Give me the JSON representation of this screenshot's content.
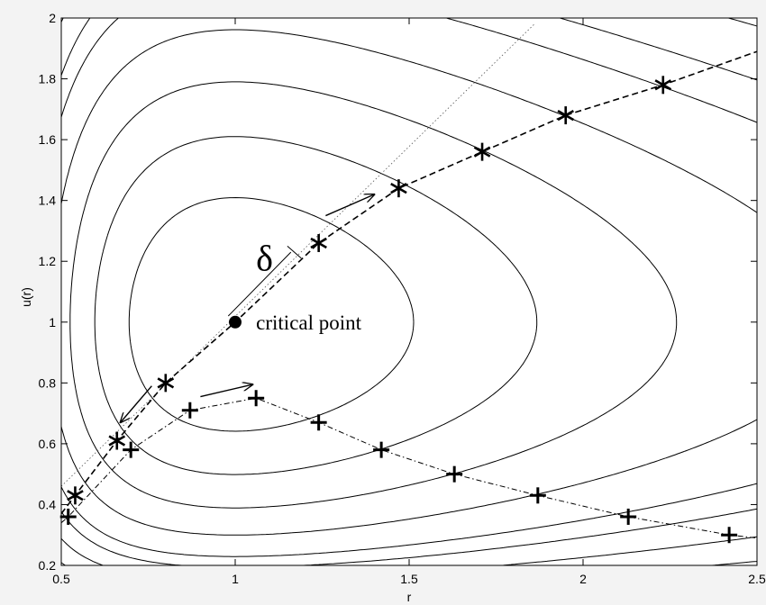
{
  "chart_data": {
    "type": "line",
    "title": "",
    "xlabel": "r",
    "ylabel": "u(r)",
    "xlim": [
      0.5,
      2.5
    ],
    "ylim": [
      0.2,
      2.0
    ],
    "x_ticks": [
      "0.5",
      "1",
      "1.5",
      "2",
      "2.5"
    ],
    "y_ticks": [
      "0.2",
      "0.4",
      "0.6",
      "0.8",
      "1",
      "1.2",
      "1.4",
      "1.6",
      "1.8",
      "2"
    ],
    "grid": false,
    "legend": "none",
    "annotations": {
      "critical_point_label": "critical point",
      "delta_label": "δ"
    },
    "critical_point": {
      "r": 1.0,
      "u": 1.0
    },
    "contour_family": "isolines of (u^2/2 - ln u) + (2 ln r + 2/r), i.e. level sets through and around the saddle at (1,1)",
    "contour_levels": [
      2.65,
      2.82,
      3.02,
      3.25,
      3.5,
      3.66,
      3.9,
      4.2,
      4.6,
      5.1,
      5.7
    ],
    "series": [
      {
        "style": "dashed",
        "marker": "*",
        "points": [
          [
            0.54,
            0.43
          ],
          [
            0.66,
            0.61
          ],
          [
            0.8,
            0.8
          ],
          [
            1.24,
            1.26
          ],
          [
            1.47,
            1.44
          ],
          [
            1.71,
            1.56
          ],
          [
            1.95,
            1.68
          ],
          [
            2.23,
            1.78
          ]
        ]
      },
      {
        "style": "dash-dot",
        "marker": "+",
        "points": [
          [
            0.52,
            0.36
          ],
          [
            0.7,
            0.58
          ],
          [
            0.87,
            0.71
          ],
          [
            1.06,
            0.75
          ],
          [
            1.24,
            0.67
          ],
          [
            1.42,
            0.58
          ],
          [
            1.63,
            0.5
          ],
          [
            1.87,
            0.43
          ],
          [
            2.13,
            0.36
          ],
          [
            2.42,
            0.3
          ]
        ]
      }
    ],
    "colors": {
      "background": "#ffffff",
      "outer": "#f3f3f3",
      "ink": "#000000"
    }
  }
}
